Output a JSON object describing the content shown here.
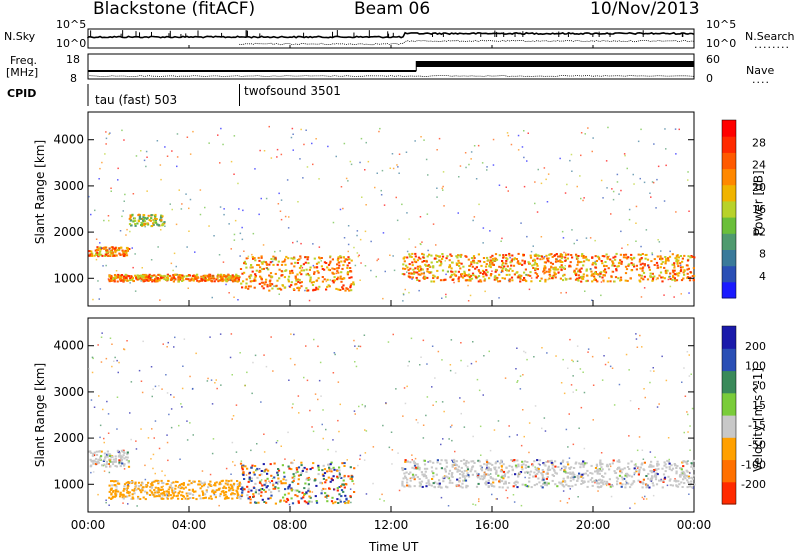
{
  "header": {
    "radar": "Blackstone (fitACF)",
    "beam": "Beam 06",
    "date": "10/Nov/2013"
  },
  "top_panels": {
    "noise": {
      "left_label": "N.Sky",
      "right_label": "N.Search",
      "left_ticks": [
        "10^5",
        "10^0"
      ],
      "right_ticks": [
        "10^5",
        "10^0"
      ],
      "legend_line": "........"
    },
    "freq": {
      "left_label_line1": "Freq.",
      "left_label_line2": "[MHz]",
      "right_label": "Nave",
      "left_ticks": [
        "18",
        "8"
      ],
      "right_ticks": [
        "60",
        "0"
      ],
      "legend_line": "...."
    },
    "cpid": {
      "label": "CPID",
      "modes": [
        {
          "name": "tau (fast) 503",
          "start_hour": 0
        },
        {
          "name": "twofsound 3501",
          "start_hour": 6
        }
      ]
    }
  },
  "chart_data": [
    {
      "type": "heatmap",
      "title": "",
      "xlabel": "",
      "ylabel": "Slant Range [km]",
      "x_range_hours": [
        0,
        24
      ],
      "ylim": [
        400,
        4600
      ],
      "y_ticks": [
        1000,
        2000,
        3000,
        4000
      ],
      "colorbar": {
        "label": "Power [dB]",
        "ticks": [
          "4",
          "8",
          "12",
          "16",
          "20",
          "24",
          "28"
        ],
        "colors": [
          "#1a1aff",
          "#2a4fb5",
          "#3a7a9a",
          "#4f9a6f",
          "#6abf3a",
          "#b8d22a",
          "#f0b400",
          "#ff8800",
          "#ff5a00",
          "#ff2a00",
          "#ff0000"
        ]
      },
      "echo_bands": [
        {
          "start_h": 0.0,
          "end_h": 1.6,
          "range_start_km": 1500,
          "range_end_km": 1700,
          "level": "high"
        },
        {
          "start_h": 1.6,
          "end_h": 3.0,
          "range_start_km": 2150,
          "range_end_km": 2400,
          "level": "medium"
        },
        {
          "start_h": 0.8,
          "end_h": 6.0,
          "range_start_km": 950,
          "range_end_km": 1100,
          "level": "high"
        },
        {
          "start_h": 6.0,
          "end_h": 10.5,
          "range_start_km": 750,
          "range_end_km": 1500,
          "level": "high"
        },
        {
          "start_h": 12.4,
          "end_h": 24.0,
          "range_start_km": 950,
          "range_end_km": 1550,
          "level": "high"
        }
      ]
    },
    {
      "type": "heatmap",
      "title": "",
      "xlabel": "Time UT",
      "ylabel": "Slant Range [km]",
      "x_range_hours": [
        0,
        24
      ],
      "ylim": [
        400,
        4600
      ],
      "y_ticks": [
        1000,
        2000,
        3000,
        4000
      ],
      "x_ticks": [
        "00:00",
        "04:00",
        "08:00",
        "12:00",
        "16:00",
        "20:00",
        "00:00"
      ],
      "colorbar": {
        "label": "Velocity [m s^-1]",
        "ticks": [
          "200",
          "100",
          "50",
          "15",
          "-15",
          "-50",
          "-100",
          "-200"
        ],
        "colors": [
          "#1a1aaa",
          "#2a4fb5",
          "#3a8a5a",
          "#7acc3a",
          "#c8c8c8",
          "#ffa000",
          "#ff7000",
          "#ff2a00"
        ]
      },
      "echo_bands": [
        {
          "start_h": 0.0,
          "end_h": 1.6,
          "range_start_km": 1400,
          "range_end_km": 1750,
          "level": "ground"
        },
        {
          "start_h": 0.8,
          "end_h": 6.0,
          "range_start_km": 700,
          "range_end_km": 1100,
          "level": "negative"
        },
        {
          "start_h": 6.0,
          "end_h": 10.5,
          "range_start_km": 600,
          "range_end_km": 1500,
          "level": "mixed"
        },
        {
          "start_h": 12.4,
          "end_h": 24.0,
          "range_start_km": 950,
          "range_end_km": 1550,
          "level": "ground"
        }
      ]
    }
  ],
  "colors": {
    "axis": "#000000",
    "background": "#ffffff"
  }
}
